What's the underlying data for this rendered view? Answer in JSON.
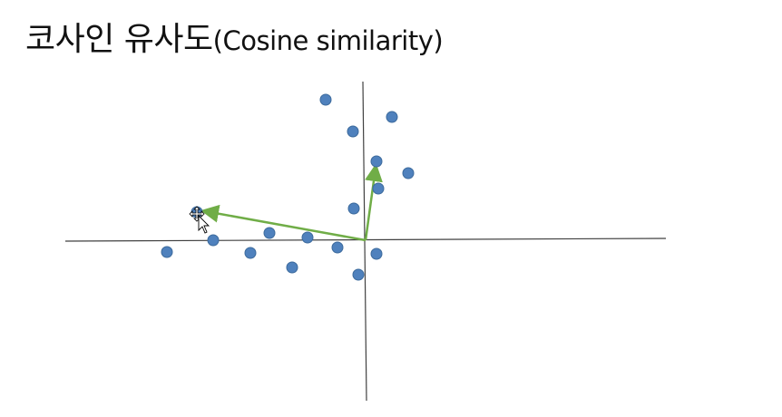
{
  "title": {
    "korean": "코사인 유사도",
    "english": "(Cosine similarity)"
  },
  "colors": {
    "point": "#4f81bd",
    "point_stroke": "#3c6a9c",
    "vector": "#70ad47",
    "axis": "#404040"
  },
  "icons": {
    "cursor": "move-cursor-icon"
  }
}
